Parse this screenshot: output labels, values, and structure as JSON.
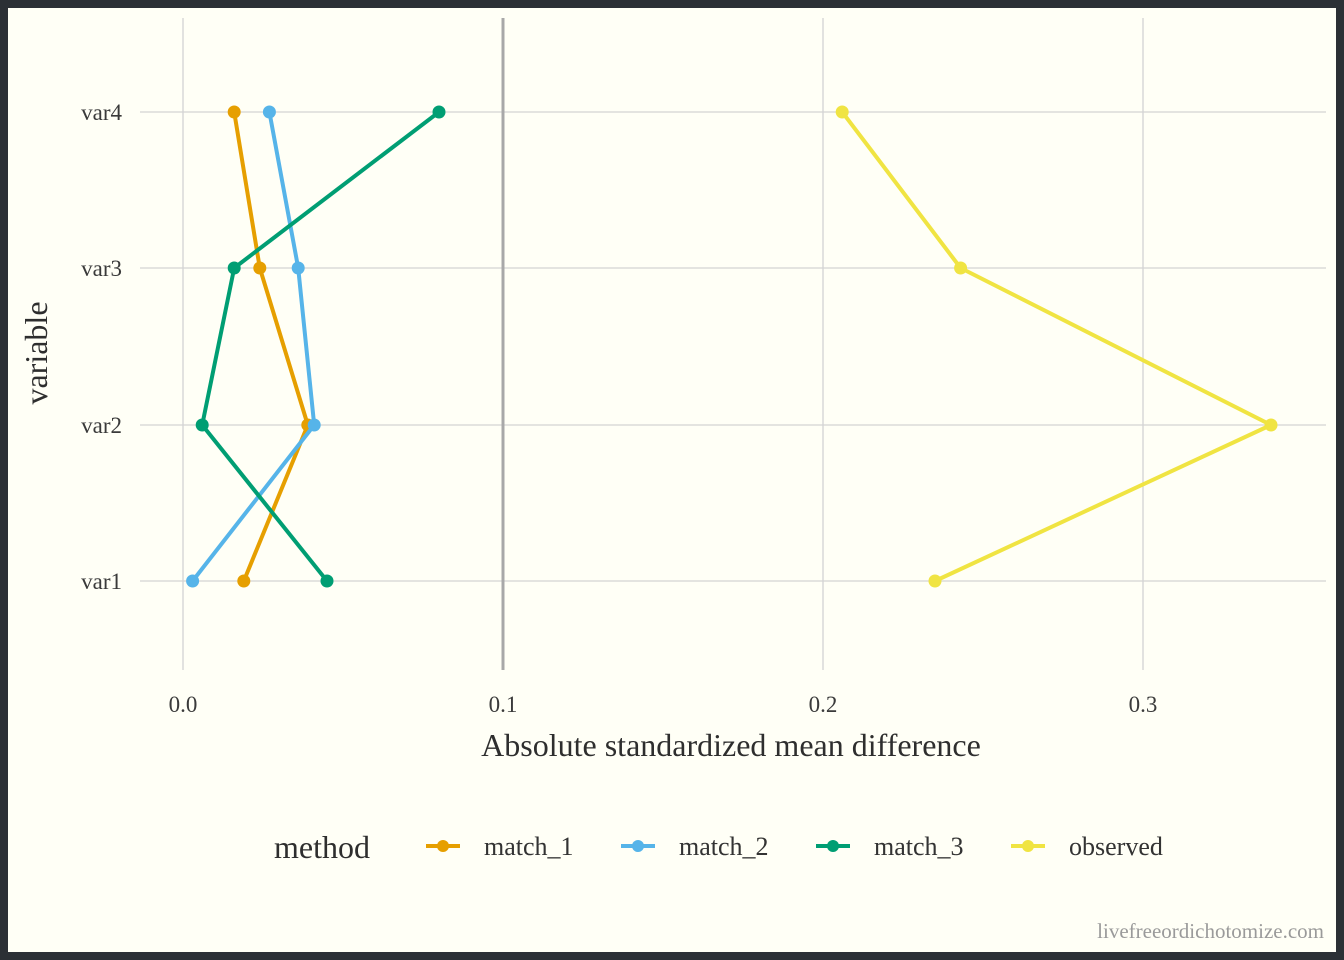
{
  "chart_data": {
    "type": "line",
    "title": "",
    "xlabel": "Absolute standardized mean difference",
    "ylabel": "variable",
    "xlim": [
      -0.005,
      0.357
    ],
    "xticks": [
      0.0,
      0.1,
      0.2,
      0.3
    ],
    "xtick_labels": [
      "0.0",
      "0.1",
      "0.2",
      "0.3"
    ],
    "categories": [
      "var1",
      "var2",
      "var3",
      "var4"
    ],
    "reference_line": 0.1,
    "grid": true,
    "legend": {
      "title": "method",
      "position": "bottom"
    },
    "series": [
      {
        "name": "match_1",
        "color": "#E69F00",
        "values": [
          0.019,
          0.039,
          0.024,
          0.016
        ]
      },
      {
        "name": "match_2",
        "color": "#56B4E9",
        "values": [
          0.003,
          0.041,
          0.036,
          0.027
        ]
      },
      {
        "name": "match_3",
        "color": "#009E73",
        "values": [
          0.045,
          0.006,
          0.016,
          0.08
        ]
      },
      {
        "name": "observed",
        "color": "#F0E442",
        "values": [
          0.235,
          0.34,
          0.243,
          0.206
        ]
      }
    ]
  },
  "caption": "livefreeordichotomize.com"
}
